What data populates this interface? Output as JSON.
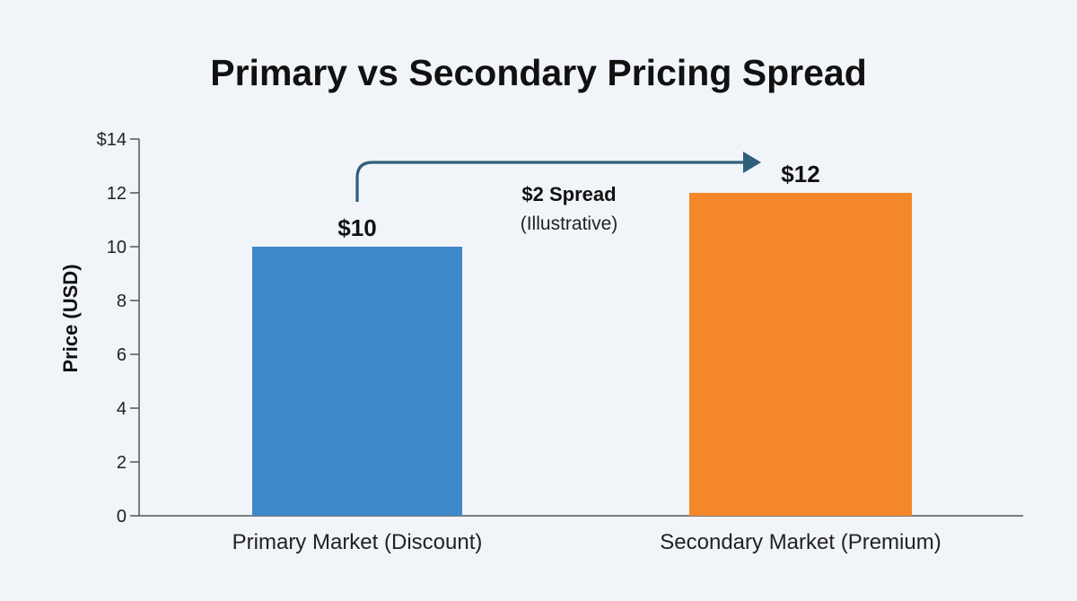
{
  "chart_data": {
    "type": "bar",
    "title": "Primary vs Secondary Pricing Spread",
    "ylabel": "Price (USD)",
    "xlabel": "",
    "categories": [
      "Primary Market (Discount)",
      "Secondary Market (Premium)"
    ],
    "values": [
      10,
      12
    ],
    "data_labels": [
      "$10",
      "$12"
    ],
    "colors": [
      "#3e87c9",
      "#f4872a"
    ],
    "ylim": [
      0,
      14
    ],
    "yticks": [
      0,
      2,
      4,
      6,
      8,
      10,
      12,
      14
    ],
    "ytick_labels": [
      "0",
      "2",
      "4",
      "6",
      "8",
      "10",
      "12",
      "$14"
    ],
    "grid": false,
    "legend": "none",
    "annotation": {
      "text": "$2 Spread",
      "subtext": "(Illustrative)",
      "from_category": "Primary Market (Discount)",
      "to_category": "Secondary Market (Premium)",
      "arrow_color": "#2f5f7a"
    }
  }
}
